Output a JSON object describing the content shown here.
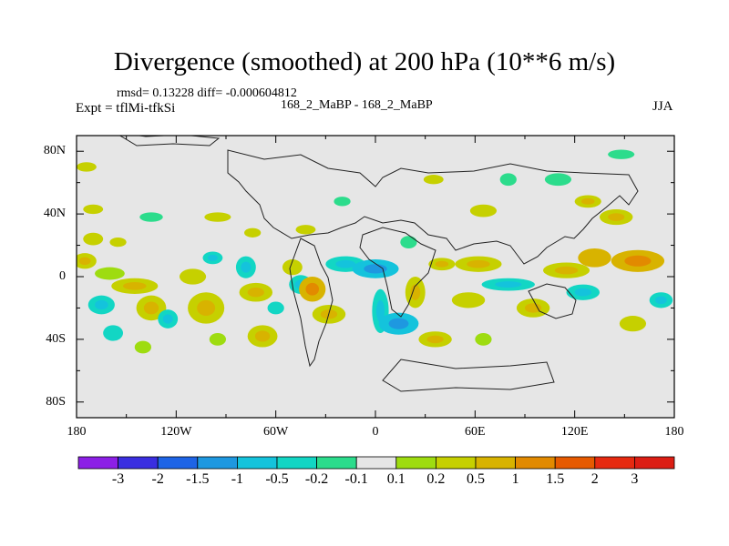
{
  "chart_data": {
    "type": "heatmap",
    "title": "Divergence (smoothed) at 200 hPa (10**6 m/s)",
    "stats": "rmsd= 0.13228 diff= -0.000604812",
    "experiment": "Expt = tflMi-tfkSi",
    "runs": "168_2_MaBP - 168_2_MaBP",
    "season": "JJA",
    "x_ticks": [
      {
        "value": -180,
        "label": "180"
      },
      {
        "value": -120,
        "label": "120W"
      },
      {
        "value": -60,
        "label": "60W"
      },
      {
        "value": 0,
        "label": "0"
      },
      {
        "value": 60,
        "label": "60E"
      },
      {
        "value": 120,
        "label": "120E"
      },
      {
        "value": 180,
        "label": "180"
      }
    ],
    "y_ticks": [
      {
        "value": 80,
        "label": "80N"
      },
      {
        "value": 40,
        "label": "40N"
      },
      {
        "value": 0,
        "label": "0"
      },
      {
        "value": -40,
        "label": "40S"
      },
      {
        "value": -80,
        "label": "80S"
      }
    ],
    "xlim": [
      -180,
      180
    ],
    "ylim": [
      -90,
      90
    ],
    "colorbar": {
      "levels": [
        "-3",
        "-2",
        "-1.5",
        "-1",
        "-0.5",
        "-0.2",
        "-0.1",
        "0.1",
        "0.2",
        "0.5",
        "1",
        "1.5",
        "2",
        "3"
      ],
      "colors": [
        "#8c1fe6",
        "#3a2ee0",
        "#1e64e6",
        "#1e98e0",
        "#14c3dc",
        "#12d6c4",
        "#2cdc8c",
        "#e6e6e6",
        "#9edc10",
        "#c6d000",
        "#d8b300",
        "#e28a00",
        "#e65a00",
        "#e62a10",
        "#dc1e14"
      ]
    },
    "blobs": [
      {
        "lon": -175,
        "lat": 10,
        "rlon": 7,
        "rlat": 5,
        "value": 0.3
      },
      {
        "lon": -170,
        "lat": 24,
        "rlon": 6,
        "rlat": 4,
        "value": 0.2
      },
      {
        "lon": -160,
        "lat": 2,
        "rlon": 9,
        "rlat": 4,
        "value": 0.15
      },
      {
        "lon": -145,
        "lat": -6,
        "rlon": 14,
        "rlat": 5,
        "value": 0.35
      },
      {
        "lon": -165,
        "lat": -18,
        "rlon": 8,
        "rlat": 6,
        "value": -0.3
      },
      {
        "lon": -135,
        "lat": -20,
        "rlon": 9,
        "rlat": 8,
        "value": 0.3
      },
      {
        "lon": -125,
        "lat": -27,
        "rlon": 6,
        "rlat": 6,
        "value": -0.3
      },
      {
        "lon": -158,
        "lat": -36,
        "rlon": 6,
        "rlat": 5,
        "value": -0.25
      },
      {
        "lon": -140,
        "lat": -45,
        "rlon": 5,
        "rlat": 4,
        "value": 0.15
      },
      {
        "lon": -110,
        "lat": 0,
        "rlon": 8,
        "rlat": 5,
        "value": 0.25
      },
      {
        "lon": -98,
        "lat": 12,
        "rlon": 6,
        "rlat": 4,
        "value": -0.3
      },
      {
        "lon": -102,
        "lat": -20,
        "rlon": 11,
        "rlat": 10,
        "value": 0.4
      },
      {
        "lon": -95,
        "lat": -40,
        "rlon": 5,
        "rlat": 4,
        "value": 0.15
      },
      {
        "lon": -78,
        "lat": 6,
        "rlon": 6,
        "rlat": 7,
        "value": -0.4
      },
      {
        "lon": -72,
        "lat": -10,
        "rlon": 10,
        "rlat": 6,
        "value": 0.3
      },
      {
        "lon": -68,
        "lat": -38,
        "rlon": 9,
        "rlat": 7,
        "value": 0.3
      },
      {
        "lon": -60,
        "lat": -20,
        "rlon": 5,
        "rlat": 4,
        "value": -0.25
      },
      {
        "lon": -50,
        "lat": 6,
        "rlon": 6,
        "rlat": 5,
        "value": 0.2
      },
      {
        "lon": -45,
        "lat": -5,
        "rlon": 7,
        "rlat": 6,
        "value": -0.35
      },
      {
        "lon": -38,
        "lat": -8,
        "rlon": 8,
        "rlat": 8,
        "value": 0.8
      },
      {
        "lon": -28,
        "lat": -24,
        "rlon": 10,
        "rlat": 6,
        "value": 0.35
      },
      {
        "lon": -18,
        "lat": 8,
        "rlon": 12,
        "rlat": 5,
        "value": -0.5
      },
      {
        "lon": 0,
        "lat": 5,
        "rlon": 14,
        "rlat": 6,
        "value": -0.6
      },
      {
        "lon": 3,
        "lat": -22,
        "rlon": 5,
        "rlat": 14,
        "value": -0.5
      },
      {
        "lon": 14,
        "lat": -30,
        "rlon": 12,
        "rlat": 7,
        "value": -0.6
      },
      {
        "lon": 24,
        "lat": -10,
        "rlon": 6,
        "rlat": 10,
        "value": 0.35
      },
      {
        "lon": 20,
        "lat": 22,
        "rlon": 5,
        "rlat": 4,
        "value": -0.2
      },
      {
        "lon": 36,
        "lat": -40,
        "rlon": 10,
        "rlat": 5,
        "value": 0.3
      },
      {
        "lon": 40,
        "lat": 8,
        "rlon": 8,
        "rlat": 4,
        "value": 0.3
      },
      {
        "lon": 62,
        "lat": 8,
        "rlon": 14,
        "rlat": 5,
        "value": 0.3
      },
      {
        "lon": 56,
        "lat": -15,
        "rlon": 10,
        "rlat": 5,
        "value": 0.25
      },
      {
        "lon": 80,
        "lat": -5,
        "rlon": 16,
        "rlat": 4,
        "value": -0.4
      },
      {
        "lon": 95,
        "lat": -20,
        "rlon": 10,
        "rlat": 6,
        "value": 0.3
      },
      {
        "lon": 65,
        "lat": -40,
        "rlon": 5,
        "rlat": 4,
        "value": 0.15
      },
      {
        "lon": 115,
        "lat": 4,
        "rlon": 14,
        "rlat": 5,
        "value": 0.3
      },
      {
        "lon": 132,
        "lat": 12,
        "rlon": 10,
        "rlat": 6,
        "value": 0.5
      },
      {
        "lon": 125,
        "lat": -10,
        "rlon": 10,
        "rlat": 5,
        "value": -0.3
      },
      {
        "lon": 158,
        "lat": 10,
        "rlon": 16,
        "rlat": 7,
        "value": 0.6
      },
      {
        "lon": 172,
        "lat": -15,
        "rlon": 7,
        "rlat": 5,
        "value": -0.3
      },
      {
        "lon": 155,
        "lat": -30,
        "rlon": 8,
        "rlat": 5,
        "value": 0.2
      },
      {
        "lon": 145,
        "lat": 38,
        "rlon": 10,
        "rlat": 5,
        "value": 0.4
      },
      {
        "lon": 128,
        "lat": 48,
        "rlon": 8,
        "rlat": 4,
        "value": 0.3
      },
      {
        "lon": 110,
        "lat": 62,
        "rlon": 8,
        "rlat": 4,
        "value": -0.2
      },
      {
        "lon": 80,
        "lat": 62,
        "rlon": 5,
        "rlat": 4,
        "value": -0.2
      },
      {
        "lon": 65,
        "lat": 42,
        "rlon": 8,
        "rlat": 4,
        "value": 0.25
      },
      {
        "lon": 35,
        "lat": 62,
        "rlon": 6,
        "rlat": 3,
        "value": 0.2
      },
      {
        "lon": 148,
        "lat": 78,
        "rlon": 8,
        "rlat": 3,
        "value": -0.15
      },
      {
        "lon": -174,
        "lat": 70,
        "rlon": 6,
        "rlat": 3,
        "value": 0.2
      },
      {
        "lon": -170,
        "lat": 43,
        "rlon": 6,
        "rlat": 3,
        "value": 0.2
      },
      {
        "lon": -135,
        "lat": 38,
        "rlon": 7,
        "rlat": 3,
        "value": -0.2
      },
      {
        "lon": -95,
        "lat": 38,
        "rlon": 8,
        "rlat": 3,
        "value": 0.25
      },
      {
        "lon": -74,
        "lat": 28,
        "rlon": 5,
        "rlat": 3,
        "value": 0.2
      },
      {
        "lon": -42,
        "lat": 30,
        "rlon": 6,
        "rlat": 3,
        "value": 0.2
      },
      {
        "lon": -20,
        "lat": 48,
        "rlon": 5,
        "rlat": 3,
        "value": -0.15
      },
      {
        "lon": -155,
        "lat": 22,
        "rlon": 5,
        "rlat": 3,
        "value": 0.2
      }
    ]
  }
}
